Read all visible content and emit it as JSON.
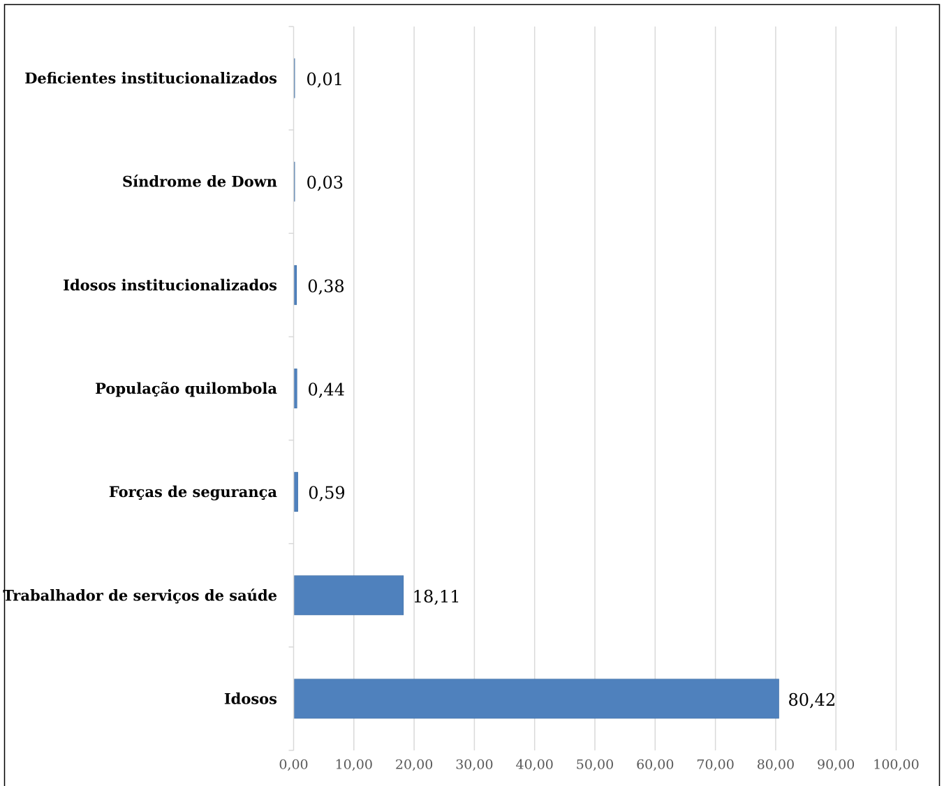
{
  "chart_data": {
    "type": "bar",
    "orientation": "horizontal",
    "categories": [
      "Deficientes institucionalizados",
      "Síndrome de Down",
      "Idosos institucionalizados",
      "População quilombola",
      "Forças de segurança",
      "Trabalhador de serviços de saúde",
      "Idosos"
    ],
    "values": [
      0.01,
      0.03,
      0.38,
      0.44,
      0.59,
      18.11,
      80.42
    ],
    "value_labels": [
      "0,01",
      "0,03",
      "0,38",
      "0,44",
      "0,59",
      "18,11",
      "80,42"
    ],
    "x_ticks": [
      "0,00",
      "10,00",
      "20,00",
      "30,00",
      "40,00",
      "50,00",
      "60,00",
      "70,00",
      "80,00",
      "90,00",
      "100,00"
    ],
    "xlim": [
      0,
      100
    ],
    "grid": true,
    "bar_color": "#4f81bd",
    "title": "",
    "xlabel": "",
    "ylabel": ""
  }
}
